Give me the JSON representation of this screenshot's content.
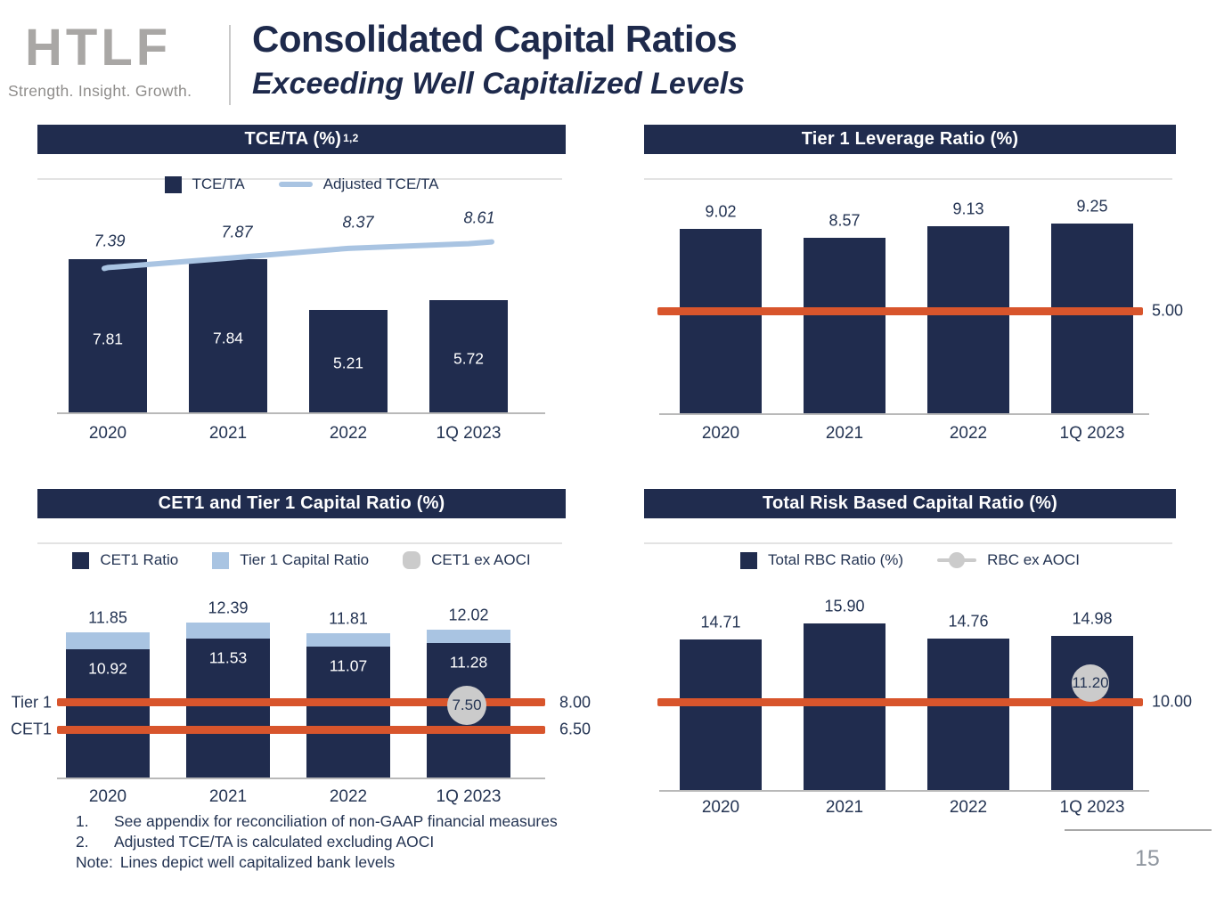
{
  "header": {
    "logo_text": "HTLF",
    "logo_tagline": "Strength. Insight. Growth.",
    "title": "Consolidated Capital Ratios",
    "subtitle": "Exceeding Well Capitalized Levels"
  },
  "footnotes": [
    {
      "prefix": "1.",
      "text": "See appendix for reconciliation of non-GAAP financial measures"
    },
    {
      "prefix": "2.",
      "text": "Adjusted TCE/TA is calculated excluding AOCI"
    },
    {
      "prefix": "Note:",
      "text": "Lines depict well capitalized bank levels"
    }
  ],
  "page_number": "15",
  "colors": {
    "navy": "#202c4e",
    "light_blue": "#a9c4e2",
    "red": "#d8552c",
    "gray_marker": "#cbcbcb",
    "text_navy": "#243453",
    "axis_gray": "#b9b9b9",
    "logo_gray": "#a9a7a5",
    "page_gray": "#8f969f"
  },
  "chart_data": [
    {
      "id": "tce-ta",
      "type": "bar+line",
      "title": "TCE/TA (%)",
      "title_superscript": "1,2",
      "categories": [
        "2020",
        "2021",
        "2022",
        "1Q 2023"
      ],
      "series": [
        {
          "name": "TCE/TA",
          "type": "bar",
          "values": [
            7.81,
            7.84,
            5.21,
            5.72
          ]
        },
        {
          "name": "Adjusted  TCE/TA",
          "type": "line",
          "values": [
            7.39,
            7.87,
            8.37,
            8.61
          ]
        }
      ],
      "legend_position": "top"
    },
    {
      "id": "tier1-leverage",
      "type": "bar",
      "title": "Tier 1 Leverage Ratio (%)",
      "categories": [
        "2020",
        "2021",
        "2022",
        "1Q 2023"
      ],
      "series": [
        {
          "name": "Tier 1 Leverage Ratio",
          "type": "bar",
          "values": [
            9.02,
            8.57,
            9.13,
            9.25
          ]
        }
      ],
      "reference_lines": [
        {
          "label": "5.00",
          "value": 5.0
        }
      ]
    },
    {
      "id": "cet1-tier1",
      "type": "stacked-bar",
      "title": "CET1 and Tier 1 Capital Ratio (%)",
      "categories": [
        "2020",
        "2021",
        "2022",
        "1Q 2023"
      ],
      "series": [
        {
          "name": "CET1 Ratio",
          "type": "bar",
          "values": [
            10.92,
            11.53,
            11.07,
            11.28
          ]
        },
        {
          "name": "Tier 1 Capital Ratio",
          "type": "bar-cap",
          "totals": [
            11.85,
            12.39,
            11.81,
            12.02
          ]
        },
        {
          "name": "CET1 ex AOCI",
          "type": "marker",
          "category": "1Q 2023",
          "value": 7.5
        }
      ],
      "reference_lines": [
        {
          "name": "Tier 1",
          "label": "8.00",
          "value": 8.0
        },
        {
          "name": "CET1",
          "label": "6.50",
          "value": 6.5
        }
      ],
      "legend_position": "top"
    },
    {
      "id": "total-rbc",
      "type": "bar",
      "title": "Total Risk Based Capital Ratio (%)",
      "categories": [
        "2020",
        "2021",
        "2022",
        "1Q 2023"
      ],
      "series": [
        {
          "name": "Total RBC Ratio (%)",
          "type": "bar",
          "values": [
            14.71,
            15.9,
            14.76,
            14.98
          ]
        },
        {
          "name": "RBC ex AOCI",
          "type": "marker",
          "category": "1Q 2023",
          "value": 11.2
        }
      ],
      "reference_lines": [
        {
          "label": "10.00",
          "value": 10.0
        }
      ],
      "legend_position": "top"
    }
  ]
}
